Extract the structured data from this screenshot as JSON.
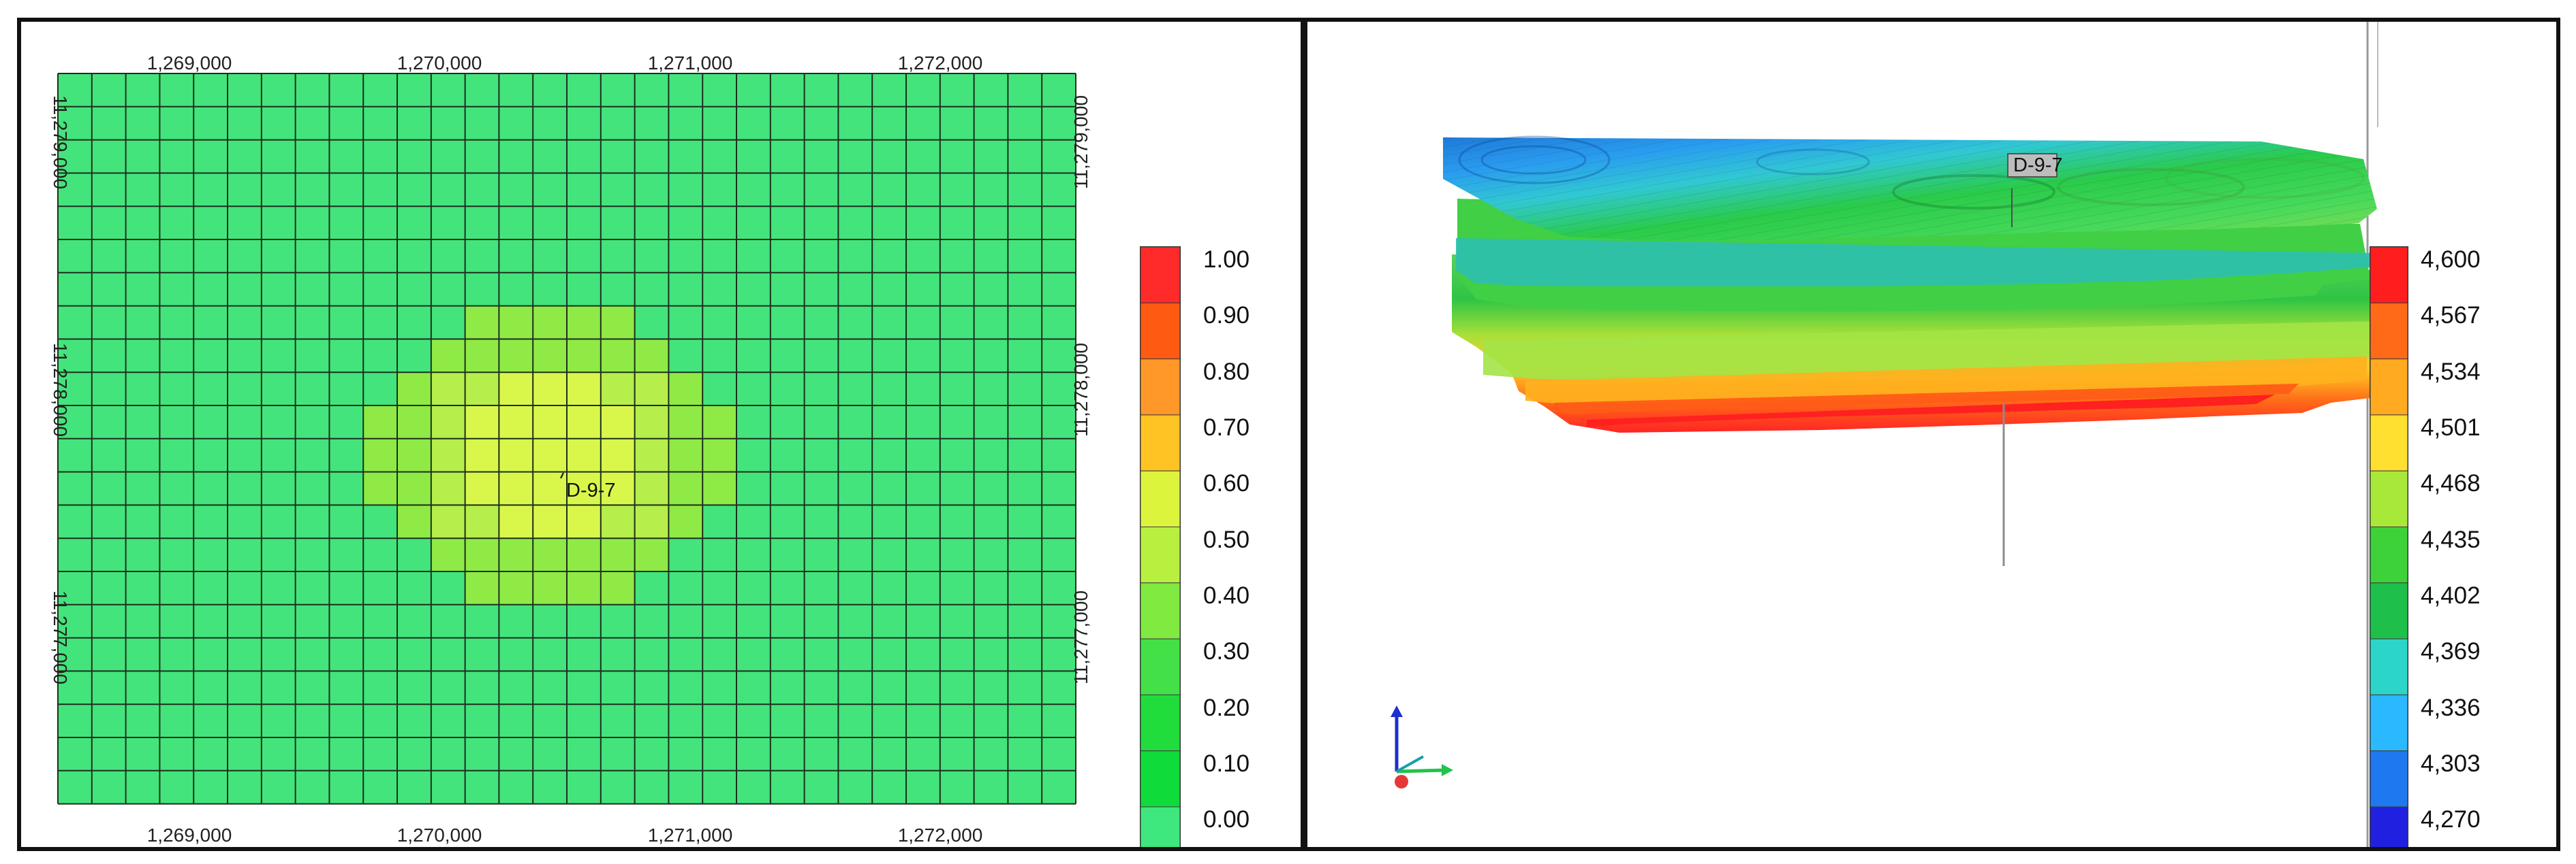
{
  "map_view": {
    "x_ticks": [
      "1,269,000",
      "1,270,000",
      "1,271,000",
      "1,272,000"
    ],
    "y_ticks": [
      "11,279,000",
      "11,278,000",
      "11,277,000"
    ],
    "well_label": "D-9-7",
    "legend_labels": [
      "1.00",
      "0.90",
      "0.80",
      "0.70",
      "0.60",
      "0.50",
      "0.40",
      "0.30",
      "0.20",
      "0.10",
      "0.00"
    ],
    "legend_colors": [
      "#ff2a2a",
      "#ff5a12",
      "#ff9828",
      "#ffc424",
      "#ddf43c",
      "#b8f040",
      "#80ea40",
      "#44e048",
      "#20dd3c",
      "#0fdb3a",
      "#3ee87e"
    ],
    "background_color": "#43e47c"
  },
  "volume_view": {
    "well_label": "D-9-7",
    "legend_labels": [
      "4,600",
      "4,567",
      "4,534",
      "4,501",
      "4,468",
      "4,435",
      "4,402",
      "4,369",
      "4,336",
      "4,303",
      "4,270"
    ],
    "legend_colors": [
      "#ff1e1e",
      "#ff6a18",
      "#ffaa20",
      "#ffe030",
      "#a8e838",
      "#3dd23a",
      "#1fbf4c",
      "#2bd6c8",
      "#2ab8ff",
      "#1e78f0",
      "#2020e0"
    ]
  }
}
